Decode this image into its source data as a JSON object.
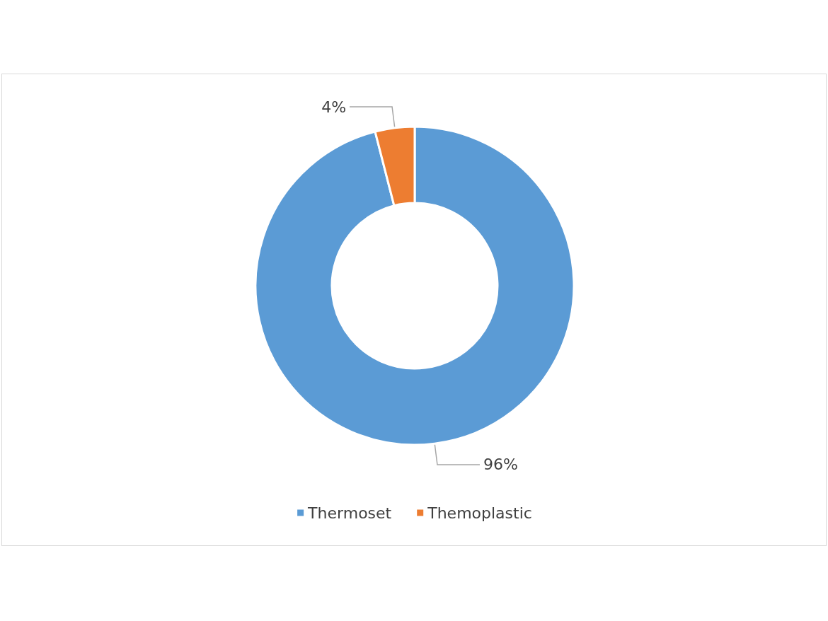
{
  "chart_data": {
    "type": "donut",
    "categories": [
      "Thermoset",
      "Themoplastic"
    ],
    "values": [
      96,
      4
    ],
    "colors": [
      "#5b9bd5",
      "#ed7d31"
    ],
    "value_labels": [
      "96%",
      "4%"
    ],
    "legend": "bottom"
  }
}
